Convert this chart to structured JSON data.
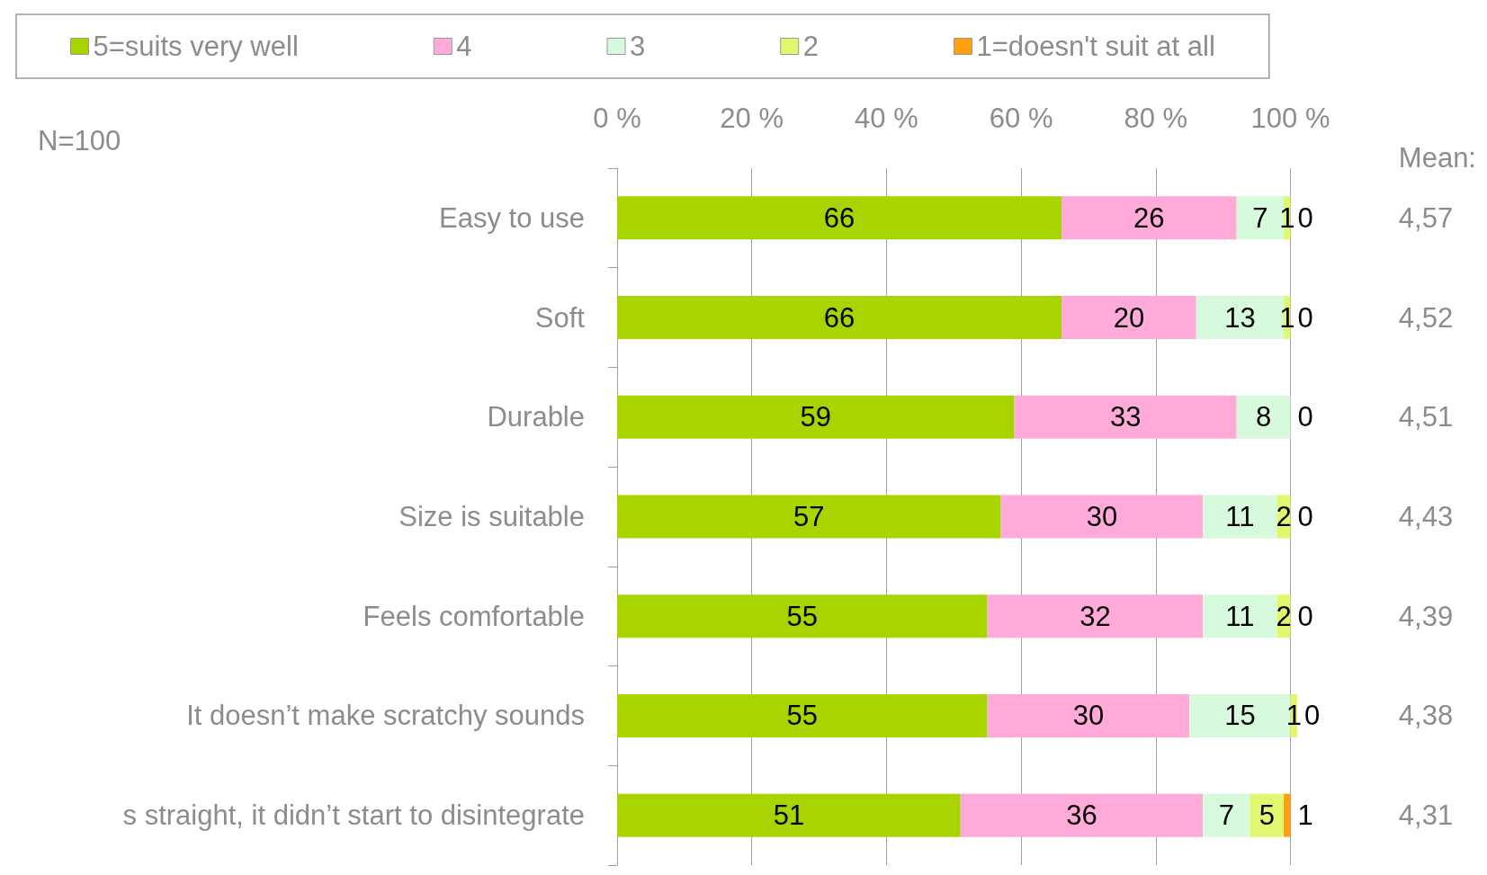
{
  "chart_data": {
    "type": "bar",
    "orientation": "horizontal",
    "stacked": true,
    "grid": "x",
    "legend": "top",
    "categories": [
      "Easy to use",
      "Soft",
      "Durable",
      "Size is suitable",
      "Feels comfortable",
      "It doesn’t make scratchy sounds",
      "s straight, it didn’t start to disintegrate"
    ],
    "series": [
      {
        "name": "5=suits very well",
        "color": "#a8d400",
        "values": [
          66,
          66,
          59,
          57,
          55,
          55,
          51
        ],
        "value_labels": [
          "66",
          "66",
          "59",
          "57",
          "55",
          "55",
          "51"
        ]
      },
      {
        "name": "4",
        "color": "#ffaad8",
        "values": [
          26,
          20,
          33,
          30,
          32,
          30,
          36
        ],
        "value_labels": [
          "26",
          "20",
          "33",
          "30",
          "32",
          "30",
          "36"
        ]
      },
      {
        "name": "3",
        "color": "#d8fadc",
        "values": [
          7,
          13,
          8,
          11,
          11,
          15,
          7
        ],
        "value_labels": [
          "7",
          "13",
          "8",
          "11",
          "11",
          "15",
          "7"
        ]
      },
      {
        "name": "2",
        "color": "#e0f870",
        "values": [
          1,
          1,
          0,
          2,
          2,
          1,
          5
        ],
        "value_labels": [
          "1",
          "1",
          null,
          "2",
          "2",
          "1",
          "5"
        ]
      },
      {
        "name": "1=doesn't suit at all",
        "color": "#ffa010",
        "values": [
          0,
          0,
          0,
          0,
          0,
          0,
          1
        ],
        "value_labels": [
          "0",
          "0",
          "0",
          "0",
          "0",
          "0",
          "1"
        ]
      }
    ],
    "xlim": [
      0,
      101
    ],
    "xticks": [
      {
        "value": 0,
        "label": "0 %"
      },
      {
        "value": 20,
        "label": "20 %"
      },
      {
        "value": 40,
        "label": "40 %"
      },
      {
        "value": 60,
        "label": "60 %"
      },
      {
        "value": 80,
        "label": "80 %"
      },
      {
        "value": 100,
        "label": "100 %"
      }
    ],
    "annotations": [
      "N=100",
      "Mean:",
      "4,57",
      "4,52",
      "4,51",
      "4,43",
      "4,39",
      "4,38",
      "4,31"
    ]
  }
}
